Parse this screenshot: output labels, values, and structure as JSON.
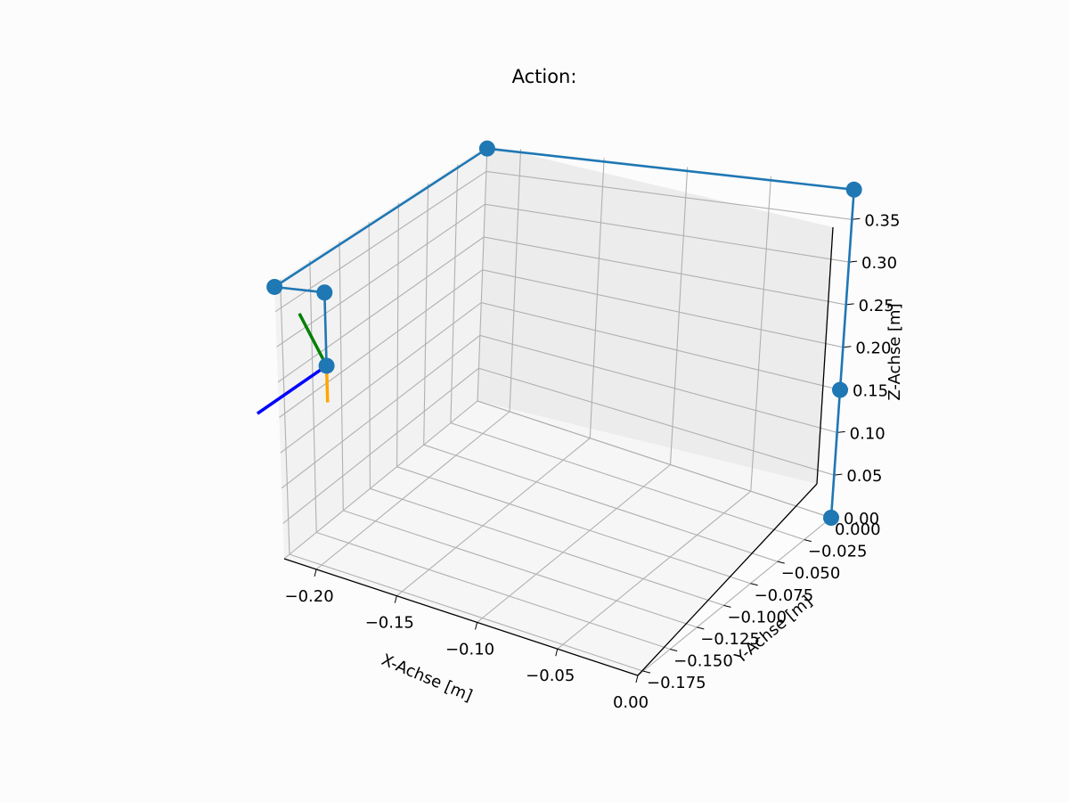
{
  "chart_data": {
    "type": "scatter",
    "title": "Action:",
    "xlabel": "X-Achse [m]",
    "ylabel": "Y-Achse [m]",
    "zlabel": "Z-Achse [m]",
    "xlim": [
      -0.22,
      0.0
    ],
    "ylim": [
      -0.18,
      0.0
    ],
    "zlim": [
      0.0,
      0.39
    ],
    "grid": true,
    "xticks": [
      -0.2,
      -0.15,
      -0.1,
      -0.05,
      0.0
    ],
    "xtick_labels": [
      "−0.20",
      "−0.15",
      "−0.10",
      "−0.05",
      "0.00"
    ],
    "yticks": [
      0.0,
      -0.025,
      -0.05,
      -0.075,
      -0.1,
      -0.125,
      -0.15,
      -0.175
    ],
    "ytick_labels": [
      "0.000",
      "−0.025",
      "−0.050",
      "−0.075",
      "−0.100",
      "−0.125",
      "−0.150",
      "−0.175"
    ],
    "zticks": [
      0.0,
      0.05,
      0.1,
      0.15,
      0.2,
      0.25,
      0.3,
      0.35
    ],
    "ztick_labels": [
      "0.00",
      "0.05",
      "0.10",
      "0.15",
      "0.20",
      "0.25",
      "0.30",
      "0.35"
    ],
    "series": [
      {
        "values": [
          [
            0.0,
            0.0,
            0.0
          ],
          [
            0.0,
            0.0,
            0.15
          ],
          [
            0.0,
            0.0,
            0.385
          ],
          [
            -0.22,
            0.0,
            0.385
          ],
          [
            -0.22,
            -0.18,
            0.385
          ],
          [
            -0.19,
            -0.18,
            0.385
          ],
          [
            -0.19,
            -0.18,
            0.285
          ]
        ],
        "color": "#1f77b4"
      }
    ],
    "frame_axes": {
      "origin": [
        -0.19,
        -0.18,
        0.285
      ],
      "segments": [
        {
          "color": "#0000ff",
          "end": [
            -0.19,
            -0.24,
            0.285
          ]
        },
        {
          "color": "#008000",
          "end": [
            -0.22,
            -0.16,
            0.325
          ]
        },
        {
          "color": "#ffa500",
          "end": [
            -0.19,
            -0.18,
            0.235
          ]
        }
      ]
    }
  }
}
